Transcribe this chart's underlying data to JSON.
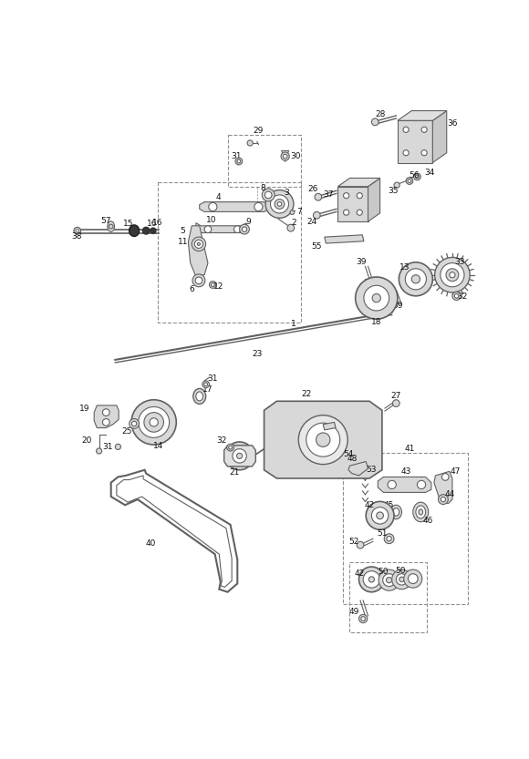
{
  "bg_color": "#ffffff",
  "lc": "#606060",
  "dc": "#909090",
  "lbl": "#111111",
  "pf": "#d8d8d8",
  "dpf": "#383838",
  "fig_w": 5.8,
  "fig_h": 8.33,
  "dpi": 100
}
